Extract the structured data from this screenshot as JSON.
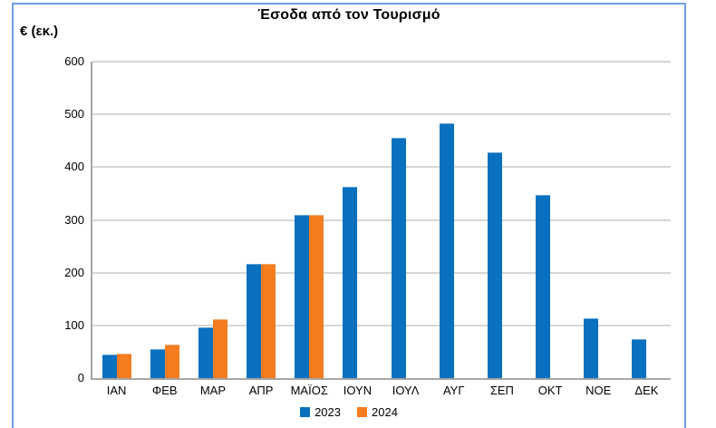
{
  "chart_data": {
    "type": "bar",
    "title": "Έσοδα από τον Τουρισμό",
    "ylabel": "€ (εκ.)",
    "xlabel": "",
    "categories": [
      "ΙΑΝ",
      "ΦΕΒ",
      "ΜΑΡ",
      "ΑΠΡ",
      "ΜΑΪΟΣ",
      "ΙΟΥΝ",
      "ΙΟΥΛ",
      "ΑΥΓ",
      "ΣΕΠ",
      "ΟΚΤ",
      "ΝΟΕ",
      "ΔΕΚ"
    ],
    "series": [
      {
        "name": "2023",
        "color": "#0a70c0",
        "values": [
          45,
          55,
          97,
          217,
          310,
          362,
          455,
          483,
          428,
          347,
          113,
          74
        ]
      },
      {
        "name": "2024",
        "color": "#f57c1f",
        "values": [
          46,
          64,
          112,
          217,
          310,
          null,
          null,
          null,
          null,
          null,
          null,
          null
        ]
      }
    ],
    "ylim": [
      0,
      600
    ],
    "ytick_interval": 100,
    "yticks": [
      0,
      100,
      200,
      300,
      400,
      500,
      600
    ],
    "grid": true,
    "legend_position": "bottom"
  },
  "colors": {
    "frame_border": "#6f9ee8",
    "gridline": "#d6d6d6",
    "axis_line": "#a6a6a6",
    "text": "#000000",
    "background": "#ffffff"
  }
}
